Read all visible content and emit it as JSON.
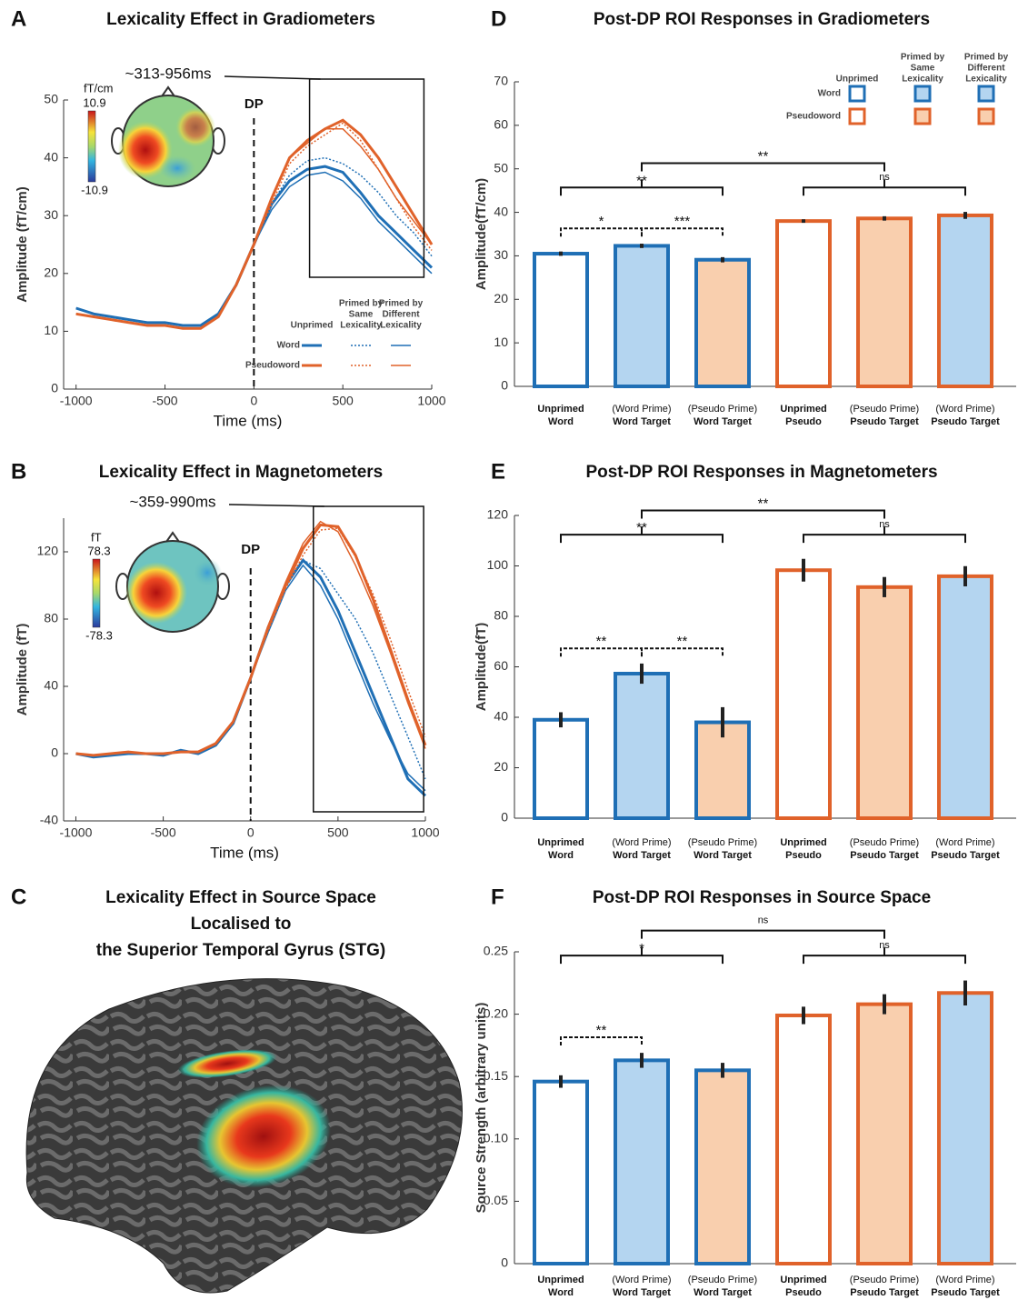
{
  "chart_data": [
    {
      "type": "line",
      "panel": "A",
      "title": "Lexicality Effect in Gradiometers",
      "xlabel": "Time (ms)",
      "ylabel": "Amplitude (fT/cm)",
      "x": [
        -1000,
        -900,
        -800,
        -700,
        -600,
        -500,
        -400,
        -300,
        -200,
        -100,
        0,
        100,
        200,
        300,
        400,
        500,
        600,
        700,
        800,
        900,
        1000
      ],
      "xlim": [
        -1070,
        1000
      ],
      "xticks": [
        -1000,
        -500,
        0,
        500,
        1000
      ],
      "ylim": [
        0,
        50
      ],
      "yticks": [
        0,
        10,
        20,
        30,
        40,
        50
      ],
      "dp": {
        "label": "DP",
        "x": 0
      },
      "highlight": {
        "label": "~313-956ms",
        "xrange": [
          313,
          956
        ]
      },
      "colorbar": {
        "unit": "fT/cm",
        "clim": [
          -10.9,
          10.9
        ]
      },
      "legend": {
        "columns": [
          [
            "Unprimed"
          ],
          [
            "Primed by",
            "Same",
            "Lexicality"
          ],
          [
            "Primed by",
            "Different",
            "Lexicality"
          ]
        ]
      },
      "series_groups": [
        {
          "name": "Word",
          "color": "#1f6fb5",
          "lines": [
            {
              "style": "solid-thick",
              "values": [
                14,
                13,
                12.5,
                12,
                11.5,
                11.5,
                11,
                11,
                13,
                18,
                25,
                32,
                36,
                38,
                38.5,
                37.5,
                34,
                30,
                27,
                24,
                21
              ]
            },
            {
              "style": "dotted",
              "values": [
                14,
                13,
                12.5,
                12,
                11.5,
                11.5,
                11,
                11,
                13,
                18,
                25,
                32,
                37,
                39.5,
                40,
                39,
                37,
                34,
                30,
                27,
                23
              ]
            },
            {
              "style": "solid-thin",
              "values": [
                14,
                13,
                12.5,
                12,
                11.5,
                11.5,
                11,
                11,
                13,
                18,
                25,
                31,
                35,
                37,
                37.5,
                36,
                33,
                29,
                26,
                23,
                20
              ]
            }
          ]
        },
        {
          "name": "Pseudoword",
          "color": "#e0622a",
          "lines": [
            {
              "style": "solid-thick",
              "values": [
                13,
                12.5,
                12,
                11.5,
                11,
                11,
                10.5,
                10.5,
                12.5,
                18,
                25,
                33,
                40,
                43,
                45,
                46.5,
                44,
                40,
                35,
                30,
                25
              ]
            },
            {
              "style": "dotted",
              "values": [
                13,
                12.5,
                12,
                11.5,
                11,
                11,
                10.5,
                10.5,
                12.5,
                18,
                25,
                32,
                39,
                42,
                44,
                46,
                43,
                38,
                33,
                28,
                24
              ]
            },
            {
              "style": "solid-thin",
              "values": [
                13,
                12.5,
                12,
                11.5,
                11,
                11,
                10.5,
                10.5,
                12.5,
                18,
                25,
                33,
                40,
                42.5,
                45,
                45,
                42,
                38,
                33,
                29,
                25
              ]
            }
          ]
        }
      ]
    },
    {
      "type": "line",
      "panel": "B",
      "title": "Lexicality Effect in Magnetometers",
      "xlabel": "Time (ms)",
      "ylabel": "Amplitude (fT)",
      "x": [
        -1000,
        -900,
        -800,
        -700,
        -600,
        -500,
        -400,
        -300,
        -200,
        -100,
        0,
        100,
        200,
        300,
        400,
        500,
        600,
        700,
        800,
        900,
        1000
      ],
      "xlim": [
        -1070,
        1000
      ],
      "xticks": [
        -1000,
        -500,
        0,
        500,
        1000
      ],
      "ylim": [
        -40,
        140
      ],
      "yticks": [
        -40,
        0,
        40,
        80,
        120
      ],
      "dp": {
        "label": "DP",
        "x": 0
      },
      "highlight": {
        "label": "~359-990ms",
        "xrange": [
          359,
          990
        ]
      },
      "colorbar": {
        "unit": "fT",
        "clim": [
          -78.3,
          78.3
        ]
      },
      "series_groups": [
        {
          "name": "Word",
          "color": "#1f6fb5",
          "lines": [
            {
              "style": "solid-thick",
              "values": [
                0,
                -2,
                -1,
                0,
                0,
                -1,
                2,
                0,
                5,
                18,
                45,
                75,
                100,
                115,
                105,
                85,
                60,
                35,
                10,
                -15,
                -25
              ]
            },
            {
              "style": "dotted",
              "values": [
                0,
                -2,
                -1,
                0,
                0,
                -1,
                2,
                0,
                5,
                18,
                45,
                75,
                100,
                115,
                110,
                95,
                80,
                60,
                35,
                10,
                -15
              ]
            },
            {
              "style": "solid-thin",
              "values": [
                0,
                -2,
                -1,
                0,
                0,
                -1,
                2,
                0,
                5,
                18,
                45,
                72,
                97,
                112,
                100,
                80,
                55,
                30,
                8,
                -12,
                -22
              ]
            }
          ]
        },
        {
          "name": "Pseudoword",
          "color": "#e0622a",
          "lines": [
            {
              "style": "solid-thick",
              "values": [
                0,
                -1,
                0,
                1,
                0,
                0,
                1,
                1,
                6,
                19,
                45,
                75,
                100,
                122,
                136,
                135,
                118,
                92,
                62,
                32,
                5
              ]
            },
            {
              "style": "dotted",
              "values": [
                0,
                -1,
                0,
                1,
                0,
                0,
                1,
                1,
                6,
                19,
                45,
                73,
                98,
                118,
                133,
                134,
                117,
                95,
                68,
                38,
                10
              ]
            },
            {
              "style": "solid-thin",
              "values": [
                0,
                -1,
                0,
                1,
                0,
                0,
                1,
                1,
                6,
                19,
                45,
                76,
                102,
                125,
                138,
                132,
                112,
                88,
                60,
                30,
                3
              ]
            }
          ]
        }
      ]
    },
    {
      "type": "bar",
      "panel": "D",
      "title": "Post-DP ROI Responses in Gradiometers",
      "ylabel": "Amplitude(fT/cm)",
      "categories": [
        [
          "Unprimed",
          "Word"
        ],
        [
          "(Word Prime)",
          "Word Target"
        ],
        [
          "(Pseudo Prime)",
          "Word Target"
        ],
        [
          "Unprimed",
          "Pseudo"
        ],
        [
          "(Pseudo Prime)",
          "Pseudo Target"
        ],
        [
          "(Word Prime)",
          "Pseudo Target"
        ]
      ],
      "values": [
        30.5,
        32.3,
        29.1,
        38.0,
        38.6,
        39.3
      ],
      "errors": [
        0.5,
        0.5,
        0.6,
        0.4,
        0.5,
        0.8
      ],
      "edge_colors": [
        "#1f6fb5",
        "#1f6fb5",
        "#1f6fb5",
        "#e0622a",
        "#e0622a",
        "#e0622a"
      ],
      "fill_colors": [
        "#ffffff",
        "#b4d5f0",
        "#f9cfae",
        "#ffffff",
        "#f9cfae",
        "#b4d5f0"
      ],
      "ylim": [
        0,
        70
      ],
      "yticks": [
        0,
        10,
        20,
        30,
        40,
        50,
        60,
        70
      ],
      "brackets": [
        {
          "from": 0,
          "to": 1,
          "label": "*",
          "dashed": true
        },
        {
          "from": 1,
          "to": 2,
          "label": "***",
          "dashed": true
        },
        {
          "from": 0,
          "to": 2,
          "label": "**",
          "dashed": false
        },
        {
          "from": 3,
          "to": 5,
          "label": "ns",
          "dashed": false
        },
        {
          "from": 1,
          "to": 4,
          "label": "**",
          "dashed": false
        }
      ],
      "legend": {
        "columns": [
          [
            "Unprimed"
          ],
          [
            "Primed by",
            "Same",
            "Lexicality"
          ],
          [
            "Primed by",
            "Different",
            "Lexicality"
          ]
        ],
        "rows": [
          {
            "name": "Word",
            "edge": "#1f6fb5",
            "fills": [
              "#ffffff",
              "#b4d5f0",
              "#b4d5f0"
            ]
          },
          {
            "name": "Pseudoword",
            "edge": "#e0622a",
            "fills": [
              "#ffffff",
              "#f9cfae",
              "#f9cfae"
            ]
          }
        ]
      }
    },
    {
      "type": "bar",
      "panel": "E",
      "title": "Post-DP ROI Responses in Magnetometers",
      "ylabel": "Amplitude(fT)",
      "categories": [
        [
          "Unprimed",
          "Word"
        ],
        [
          "(Word Prime)",
          "Word Target"
        ],
        [
          "(Pseudo Prime)",
          "Word Target"
        ],
        [
          "Unprimed",
          "Pseudo"
        ],
        [
          "(Pseudo Prime)",
          "Pseudo Target"
        ],
        [
          "(Word Prime)",
          "Pseudo Target"
        ]
      ],
      "values": [
        39,
        57.3,
        38,
        98.3,
        91.6,
        95.9
      ],
      "errors": [
        3,
        4,
        6,
        4.5,
        4,
        4
      ],
      "edge_colors": [
        "#1f6fb5",
        "#1f6fb5",
        "#1f6fb5",
        "#e0622a",
        "#e0622a",
        "#e0622a"
      ],
      "fill_colors": [
        "#ffffff",
        "#b4d5f0",
        "#f9cfae",
        "#ffffff",
        "#f9cfae",
        "#b4d5f0"
      ],
      "ylim": [
        0,
        120
      ],
      "yticks": [
        0,
        20,
        40,
        60,
        80,
        100,
        120
      ],
      "brackets": [
        {
          "from": 0,
          "to": 1,
          "label": "**",
          "dashed": true
        },
        {
          "from": 1,
          "to": 2,
          "label": "**",
          "dashed": true
        },
        {
          "from": 0,
          "to": 2,
          "label": "**",
          "dashed": false
        },
        {
          "from": 3,
          "to": 5,
          "label": "ns",
          "dashed": false
        },
        {
          "from": 1,
          "to": 4,
          "label": "**",
          "dashed": false
        }
      ]
    },
    {
      "type": "bar",
      "panel": "F",
      "title": "Post-DP ROI Responses in Source Space",
      "ylabel": "Source Strength (arbitrary units)",
      "categories": [
        [
          "Unprimed",
          "Word"
        ],
        [
          "(Word Prime)",
          "Word Target"
        ],
        [
          "(Pseudo Prime)",
          "Word Target"
        ],
        [
          "Unprimed",
          "Pseudo"
        ],
        [
          "(Pseudo Prime)",
          "Pseudo Target"
        ],
        [
          "(Word Prime)",
          "Pseudo Target"
        ]
      ],
      "values": [
        0.146,
        0.163,
        0.155,
        0.199,
        0.208,
        0.217
      ],
      "errors": [
        0.005,
        0.006,
        0.006,
        0.007,
        0.008,
        0.01
      ],
      "edge_colors": [
        "#1f6fb5",
        "#1f6fb5",
        "#1f6fb5",
        "#e0622a",
        "#e0622a",
        "#e0622a"
      ],
      "fill_colors": [
        "#ffffff",
        "#b4d5f0",
        "#f9cfae",
        "#ffffff",
        "#f9cfae",
        "#b4d5f0"
      ],
      "ylim": [
        0,
        0.25
      ],
      "yticks": [
        0,
        0.05,
        {
          "value": 0.1,
          "label": "0.10"
        },
        0.15,
        {
          "value": 0.2,
          "label": "0.20"
        },
        0.25
      ],
      "brackets": [
        {
          "from": 0,
          "to": 1,
          "label": "**",
          "dashed": true
        },
        {
          "from": 0,
          "to": 2,
          "label": "*",
          "dashed": false
        },
        {
          "from": 3,
          "to": 5,
          "label": "ns",
          "dashed": false
        },
        {
          "from": 1,
          "to": 4,
          "label": "ns",
          "dashed": false
        }
      ]
    }
  ],
  "brain": {
    "panel": "C",
    "title_lines": [
      "Lexicality Effect in Source Space",
      "Localised to",
      "the Superior Temporal Gyrus (STG)"
    ]
  }
}
